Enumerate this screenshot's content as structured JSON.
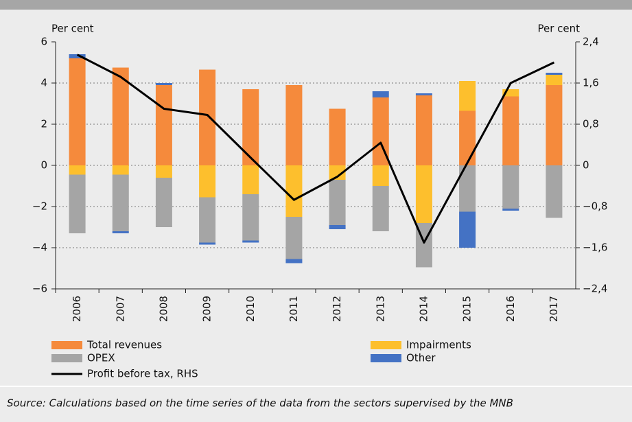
{
  "chart_data": {
    "type": "bar",
    "stacked": true,
    "ylabel": "Per cent",
    "y2label": "Per cent",
    "categories": [
      "2006",
      "2007",
      "2008",
      "2009",
      "2010",
      "2011",
      "2012",
      "2013",
      "2014",
      "2015",
      "2016",
      "2017"
    ],
    "series": [
      {
        "name": "Total revenues",
        "color": "#f58a3c",
        "values": [
          5.2,
          4.75,
          3.9,
          4.65,
          3.7,
          3.9,
          2.75,
          3.3,
          3.4,
          2.65,
          3.35,
          3.9
        ]
      },
      {
        "name": "Impairments",
        "color": "#fdbf2d",
        "values": [
          -0.45,
          -0.45,
          -0.6,
          -1.55,
          -1.4,
          -2.5,
          -0.7,
          -1.0,
          -2.8,
          1.45,
          0.35,
          0.5
        ]
      },
      {
        "name": "OPEX",
        "color": "#a5a5a5",
        "values": [
          -2.85,
          -2.75,
          -2.4,
          -2.2,
          -2.25,
          -2.05,
          -2.2,
          -2.2,
          -2.15,
          -2.25,
          -2.1,
          -2.55
        ]
      },
      {
        "name": "Other",
        "color": "#4472c4",
        "values": [
          0.2,
          -0.1,
          0.1,
          -0.1,
          -0.1,
          -0.2,
          -0.2,
          0.3,
          0.1,
          -1.75,
          -0.1,
          0.1
        ]
      },
      {
        "name": "Profit before tax, RHS",
        "color": "#000000",
        "type": "line",
        "axis": "y2",
        "values": [
          2.15,
          1.72,
          1.1,
          0.98,
          0.15,
          -0.67,
          -0.22,
          0.44,
          -1.5,
          0.05,
          1.6,
          2.0
        ]
      }
    ],
    "ylim": [
      -6,
      6
    ],
    "yticks": [
      {
        "value": -6,
        "label": "−6"
      },
      {
        "value": -4,
        "label": "−4"
      },
      {
        "value": -2,
        "label": "−2"
      },
      0,
      2,
      4,
      6
    ],
    "y2lim": [
      -2.4,
      2.4
    ],
    "y2ticks": [
      {
        "value": -2.4,
        "label": "−2,4"
      },
      {
        "value": -1.6,
        "label": "−1,6"
      },
      {
        "value": -0.8,
        "label": "−0,8"
      },
      0,
      {
        "value": 0.8,
        "label": "0,8"
      },
      {
        "value": 1.6,
        "label": "1,6"
      },
      {
        "value": 2.4,
        "label": "2,4"
      }
    ],
    "grid": true,
    "source": "Source: Calculations based on the time series of the data from the sectors supervised by the MNB"
  }
}
